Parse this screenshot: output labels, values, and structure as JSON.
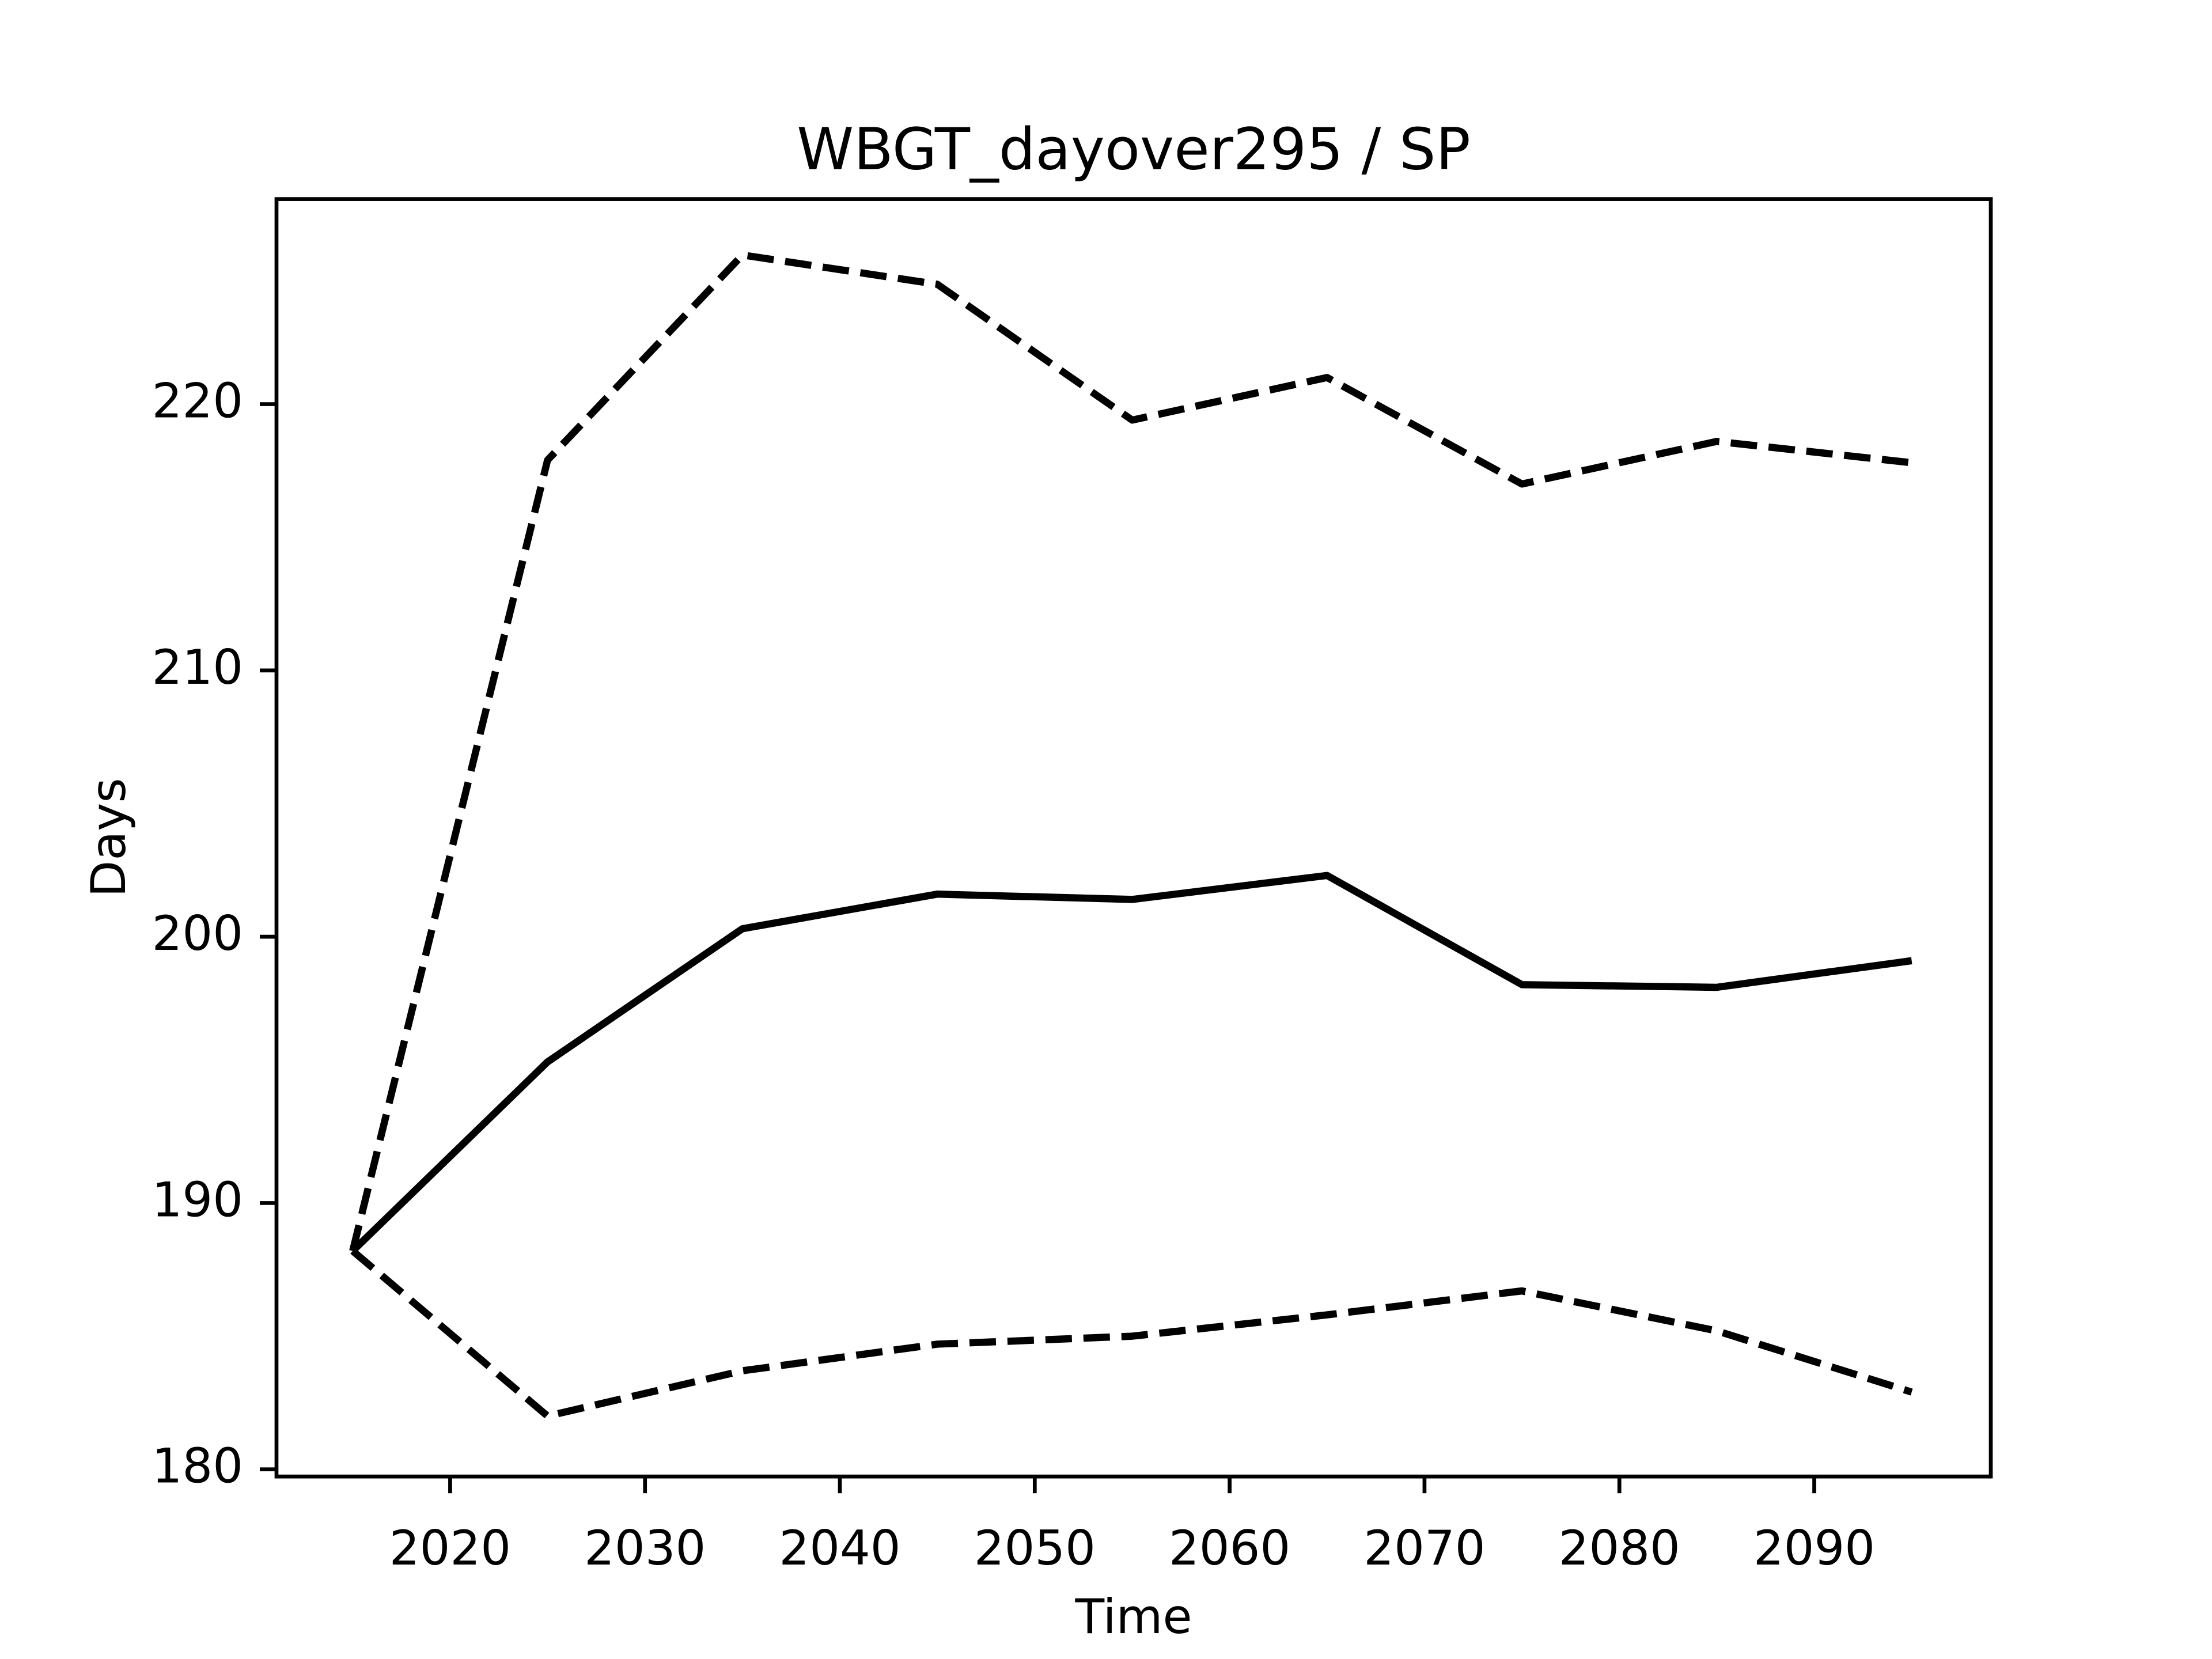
{
  "chart_data": {
    "type": "line",
    "title": "WBGT_dayover295 / SP",
    "x_label": "Time",
    "y_label": "Days",
    "x": [
      2015,
      2025,
      2035,
      2045,
      2055,
      2065,
      2075,
      2085,
      2095
    ],
    "series": [
      {
        "color": "#000000",
        "dashed": false,
        "values": [
          188.2,
          195.3,
          200.3,
          201.6,
          201.4,
          202.3,
          198.2,
          198.1,
          199.1
        ]
      },
      {
        "color": "#000000",
        "dashed": true,
        "values": [
          188.2,
          217.9,
          225.6,
          224.5,
          219.4,
          221.0,
          217.0,
          218.6,
          217.8
        ]
      },
      {
        "color": "#000000",
        "dashed": true,
        "values": [
          188.2,
          182.0,
          183.7,
          184.7,
          185.0,
          185.8,
          186.7,
          185.2,
          182.9
        ]
      }
    ],
    "xlim": [
      2011.09,
      2099.06
    ],
    "xticks": [
      2020,
      2030,
      2040,
      2050,
      2060,
      2070,
      2080,
      2090
    ],
    "ylim": [
      179.73,
      227.7
    ],
    "yticks": [
      180,
      190,
      200,
      210,
      220
    ],
    "grid": false
  }
}
